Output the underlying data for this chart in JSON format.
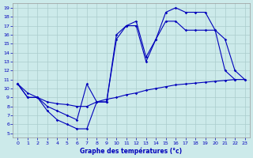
{
  "title": "Graphe des températures (°c)",
  "xlim_min": -0.5,
  "xlim_max": 23.5,
  "ylim_min": 4.5,
  "ylim_max": 19.5,
  "xticks": [
    0,
    1,
    2,
    3,
    4,
    5,
    6,
    7,
    8,
    9,
    10,
    11,
    12,
    13,
    14,
    15,
    16,
    17,
    18,
    19,
    20,
    21,
    22,
    23
  ],
  "yticks": [
    5,
    6,
    7,
    8,
    9,
    10,
    11,
    12,
    13,
    14,
    15,
    16,
    17,
    18,
    19
  ],
  "bg_color": "#cceaea",
  "line_color": "#0000bb",
  "grid_color": "#aacccc",
  "line1": {
    "x": [
      0,
      1,
      2,
      3,
      4,
      5,
      6,
      7,
      8,
      9,
      10,
      11,
      12,
      13,
      14,
      15,
      16,
      17,
      18,
      19,
      20,
      21,
      22,
      23
    ],
    "y": [
      10.5,
      9.5,
      9.0,
      8.5,
      8.3,
      8.2,
      8.0,
      8.0,
      8.5,
      8.8,
      9.0,
      9.3,
      9.5,
      9.8,
      10.0,
      10.2,
      10.4,
      10.5,
      10.6,
      10.7,
      10.8,
      10.9,
      11.0,
      11.0
    ]
  },
  "line2": {
    "x": [
      0,
      1,
      2,
      3,
      4,
      5,
      6,
      7,
      8,
      9,
      10,
      11,
      12,
      13,
      14,
      15,
      16,
      17,
      18,
      19,
      20,
      21,
      22
    ],
    "y": [
      10.5,
      9.0,
      9.0,
      7.5,
      6.5,
      6.0,
      5.5,
      5.5,
      8.5,
      8.5,
      15.5,
      17.0,
      17.0,
      13.0,
      15.5,
      17.5,
      17.5,
      16.5,
      16.5,
      16.5,
      16.5,
      12.0,
      11.0
    ]
  },
  "line3": {
    "x": [
      0,
      1,
      2,
      3,
      4,
      5,
      6,
      7,
      8,
      9,
      10,
      11,
      12,
      13,
      14,
      15,
      16,
      17,
      18,
      19,
      20,
      21,
      22,
      23
    ],
    "y": [
      10.5,
      9.0,
      9.0,
      8.0,
      7.5,
      7.0,
      6.5,
      10.5,
      8.5,
      8.5,
      16.0,
      17.0,
      17.5,
      13.5,
      15.5,
      18.5,
      19.0,
      18.5,
      18.5,
      18.5,
      16.5,
      15.5,
      12.0,
      11.0
    ]
  }
}
